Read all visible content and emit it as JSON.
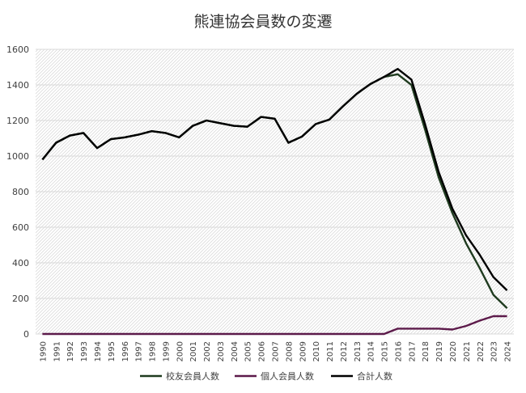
{
  "chart_data": {
    "type": "line",
    "title": "熊連協会員数の変遷",
    "categories": [
      "1990",
      "1991",
      "1992",
      "1993",
      "1994",
      "1995",
      "1996",
      "1997",
      "1998",
      "1999",
      "2000",
      "2001",
      "2002",
      "2003",
      "2004",
      "2005",
      "2006",
      "2007",
      "2008",
      "2009",
      "2010",
      "2011",
      "2012",
      "2013",
      "2014",
      "2015",
      "2016",
      "2017",
      "2018",
      "2019",
      "2020",
      "2021",
      "2022",
      "2023",
      "2024"
    ],
    "ylim": [
      0,
      1600
    ],
    "yticks": [
      0,
      200,
      400,
      600,
      800,
      1000,
      1200,
      1400,
      1600
    ],
    "grid": true,
    "legend_position": "bottom",
    "series": [
      {
        "name": "校友会員人数",
        "color": "#1f3b1f",
        "values": [
          980,
          1075,
          1115,
          1130,
          1045,
          1095,
          1105,
          1120,
          1140,
          1130,
          1105,
          1170,
          1200,
          1185,
          1170,
          1165,
          1220,
          1210,
          1075,
          1110,
          1180,
          1205,
          1280,
          1350,
          1405,
          1445,
          1460,
          1400,
          1150,
          880,
          680,
          510,
          370,
          220,
          145
        ]
      },
      {
        "name": "個人会員人数",
        "color": "#5c1a4a",
        "values": [
          0,
          0,
          0,
          0,
          0,
          0,
          0,
          0,
          0,
          0,
          0,
          0,
          0,
          0,
          0,
          0,
          0,
          0,
          0,
          0,
          0,
          0,
          0,
          0,
          0,
          0,
          30,
          30,
          30,
          30,
          25,
          45,
          75,
          100,
          100
        ]
      },
      {
        "name": "合計人数",
        "color": "#000000",
        "values": [
          980,
          1075,
          1115,
          1130,
          1045,
          1095,
          1105,
          1120,
          1140,
          1130,
          1105,
          1170,
          1200,
          1185,
          1170,
          1165,
          1220,
          1210,
          1075,
          1110,
          1180,
          1205,
          1280,
          1350,
          1405,
          1445,
          1490,
          1430,
          1180,
          910,
          705,
          555,
          445,
          320,
          245
        ]
      }
    ]
  }
}
